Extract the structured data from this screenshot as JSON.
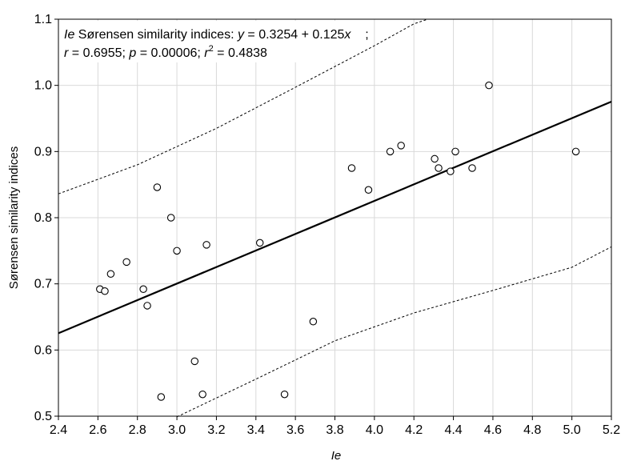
{
  "chart_data": {
    "type": "scatter",
    "title": "",
    "xlabel": "Ie",
    "ylabel": "Sørensen similarity indices",
    "xlim": [
      2.4,
      5.2
    ],
    "ylim": [
      0.5,
      1.1
    ],
    "x_ticks": [
      2.4,
      2.6,
      2.8,
      3.0,
      3.2,
      3.4,
      3.6,
      3.8,
      4.0,
      4.2,
      4.4,
      4.6,
      4.8,
      5.0,
      5.2
    ],
    "x_tick_labels": [
      "2.4",
      "2.6",
      "2.8",
      "3.0",
      "3.2",
      "3.4",
      "3.6",
      "3.8",
      "4.0",
      "4.2",
      "4.4",
      "4.6",
      "4.8",
      "5.0",
      "5.2"
    ],
    "y_ticks": [
      0.5,
      0.6,
      0.7,
      0.8,
      0.9,
      1.0,
      1.1
    ],
    "y_tick_labels": [
      "0.5",
      "0.6",
      "0.7",
      "0.8",
      "0.9",
      "1.0",
      "1.1"
    ],
    "grid": true,
    "points": [
      {
        "x": 2.61,
        "y": 0.692
      },
      {
        "x": 2.635,
        "y": 0.689
      },
      {
        "x": 2.665,
        "y": 0.715
      },
      {
        "x": 2.745,
        "y": 0.733
      },
      {
        "x": 2.83,
        "y": 0.692
      },
      {
        "x": 2.85,
        "y": 0.667
      },
      {
        "x": 2.9,
        "y": 0.846
      },
      {
        "x": 2.92,
        "y": 0.529
      },
      {
        "x": 2.97,
        "y": 0.8
      },
      {
        "x": 3.0,
        "y": 0.75
      },
      {
        "x": 3.09,
        "y": 0.583
      },
      {
        "x": 3.13,
        "y": 0.533
      },
      {
        "x": 3.15,
        "y": 0.759
      },
      {
        "x": 3.42,
        "y": 0.762
      },
      {
        "x": 3.545,
        "y": 0.533
      },
      {
        "x": 3.69,
        "y": 0.643
      },
      {
        "x": 3.885,
        "y": 0.875
      },
      {
        "x": 3.97,
        "y": 0.842
      },
      {
        "x": 4.08,
        "y": 0.9
      },
      {
        "x": 4.135,
        "y": 0.909
      },
      {
        "x": 4.305,
        "y": 0.889
      },
      {
        "x": 4.325,
        "y": 0.875
      },
      {
        "x": 4.385,
        "y": 0.87
      },
      {
        "x": 4.41,
        "y": 0.9
      },
      {
        "x": 4.495,
        "y": 0.875
      },
      {
        "x": 4.58,
        "y": 1.0
      },
      {
        "x": 5.02,
        "y": 0.9
      }
    ],
    "fit": {
      "intercept": 0.3254,
      "slope": 0.125
    },
    "confidence_band": {
      "upper": [
        [
          2.4,
          0.836
        ],
        [
          2.8,
          0.88
        ],
        [
          3.2,
          0.935
        ],
        [
          3.6,
          0.997
        ],
        [
          4.0,
          1.06
        ],
        [
          4.2,
          1.093
        ],
        [
          4.27,
          1.1
        ]
      ],
      "lower": [
        [
          3.0,
          0.499
        ],
        [
          3.4,
          0.556
        ],
        [
          3.8,
          0.614
        ],
        [
          4.2,
          0.656
        ],
        [
          4.6,
          0.69
        ],
        [
          5.0,
          0.725
        ],
        [
          5.2,
          0.756
        ]
      ]
    },
    "annotation": {
      "line1_var": "Ie",
      "line1_text": " Sørensen similarity indices: ",
      "line1_y": "y",
      "line1_eq": " = 0.3254 + 0.125",
      "line1_x": "x",
      "line1_tail": "    ;",
      "line2_r": "r",
      "line2_rval": " = 0.6955; ",
      "line2_p": "p",
      "line2_pval": " = 0.00006; ",
      "line2_r2": "r",
      "line2_r2sup": "2",
      "line2_r2val": " = 0.4838"
    }
  }
}
